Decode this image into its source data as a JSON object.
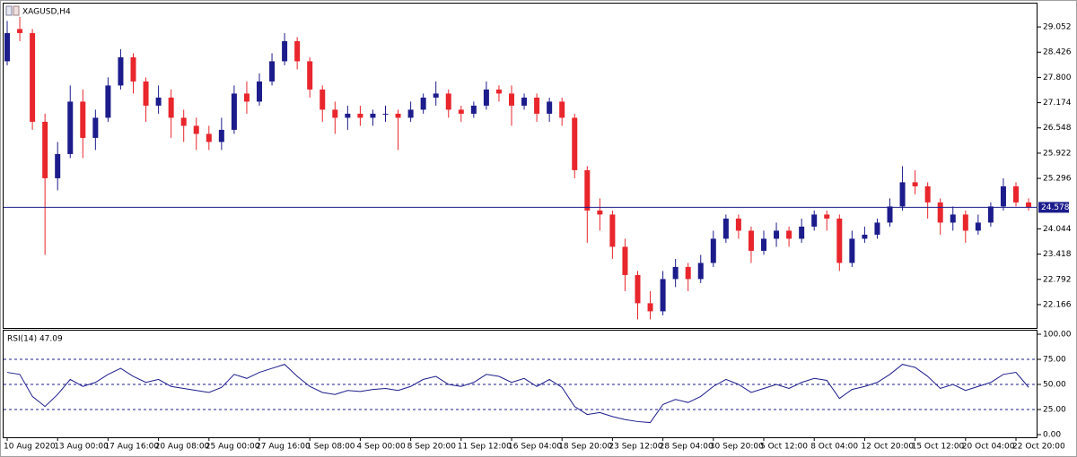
{
  "chart_data": [
    {
      "type": "candlestick",
      "title": "XAGUSD,H4",
      "categories": [
        "10 Aug 2020",
        null,
        null,
        null,
        "13 Aug 00:00",
        null,
        null,
        null,
        "17 Aug 16:00",
        null,
        null,
        null,
        "20 Aug 08:00",
        null,
        null,
        null,
        "25 Aug 00:00",
        null,
        null,
        null,
        "27 Aug 16:00",
        null,
        null,
        null,
        "1 Sep 08:00",
        null,
        null,
        null,
        "4 Sep 00:00",
        null,
        null,
        null,
        "8 Sep 20:00",
        null,
        null,
        null,
        "11 Sep 12:00",
        null,
        null,
        null,
        "16 Sep 04:00",
        null,
        null,
        null,
        "18 Sep 20:00",
        null,
        null,
        null,
        "23 Sep 12:00",
        null,
        null,
        null,
        "28 Sep 04:00",
        null,
        null,
        null,
        "30 Sep 20:00",
        null,
        null,
        null,
        "5 Oct 12:00",
        null,
        null,
        null,
        "8 Oct 04:00",
        null,
        null,
        null,
        "12 Oct 20:00",
        null,
        null,
        null,
        "15 Oct 12:00",
        null,
        null,
        null,
        "20 Oct 04:00",
        null,
        null,
        null,
        "22 Oct 20:00",
        null
      ],
      "open": [
        28.2,
        29.0,
        28.9,
        26.7,
        25.3,
        25.9,
        27.2,
        26.3,
        26.8,
        27.6,
        28.3,
        27.7,
        27.1,
        27.3,
        26.8,
        26.6,
        26.4,
        26.2,
        26.5,
        27.4,
        27.2,
        27.7,
        28.2,
        28.7,
        28.2,
        27.5,
        27.0,
        26.8,
        26.9,
        26.8,
        26.9,
        26.9,
        26.8,
        27.0,
        27.3,
        27.4,
        27.0,
        26.9,
        27.1,
        27.5,
        27.4,
        27.1,
        27.3,
        26.9,
        27.2,
        26.8,
        25.5,
        24.5,
        24.4,
        23.6,
        22.9,
        22.2,
        22.0,
        22.8,
        23.1,
        22.8,
        23.2,
        23.8,
        24.3,
        24.0,
        23.5,
        23.8,
        24.0,
        23.8,
        24.1,
        24.4,
        24.3,
        23.2,
        23.8,
        23.9,
        24.2,
        24.6,
        25.2,
        25.1,
        24.7,
        24.2,
        24.4,
        24.0,
        24.2,
        24.6,
        25.1,
        24.7
      ],
      "high": [
        29.2,
        29.3,
        29.0,
        26.9,
        26.2,
        27.6,
        27.5,
        27.0,
        27.8,
        28.5,
        28.4,
        27.8,
        27.6,
        27.5,
        27.0,
        26.8,
        26.6,
        26.8,
        27.6,
        27.7,
        27.9,
        28.4,
        28.9,
        28.8,
        28.3,
        27.6,
        27.2,
        27.1,
        27.1,
        27.0,
        27.1,
        27.0,
        27.2,
        27.4,
        27.7,
        27.5,
        27.1,
        27.2,
        27.7,
        27.6,
        27.6,
        27.4,
        27.4,
        27.3,
        27.3,
        26.9,
        25.6,
        24.8,
        24.5,
        23.8,
        23.0,
        22.5,
        23.0,
        23.3,
        23.2,
        23.4,
        24.0,
        24.4,
        24.4,
        24.1,
        24.0,
        24.2,
        24.1,
        24.3,
        24.5,
        24.5,
        24.4,
        24.0,
        24.1,
        24.3,
        24.8,
        25.6,
        25.5,
        25.2,
        24.8,
        24.6,
        24.5,
        24.4,
        24.7,
        25.3,
        25.2,
        24.8
      ],
      "low": [
        28.1,
        28.7,
        26.5,
        23.4,
        25.0,
        25.8,
        25.8,
        26.0,
        26.7,
        27.5,
        27.4,
        26.7,
        26.9,
        26.3,
        26.2,
        26.0,
        26.0,
        26.0,
        26.4,
        26.9,
        27.1,
        27.6,
        28.1,
        28.0,
        27.3,
        26.7,
        26.4,
        26.5,
        26.6,
        26.6,
        26.7,
        26.0,
        26.7,
        26.9,
        27.1,
        26.8,
        26.7,
        26.8,
        27.0,
        27.2,
        26.6,
        27.0,
        26.7,
        26.7,
        26.6,
        25.3,
        23.7,
        24.0,
        23.3,
        22.5,
        21.8,
        21.8,
        21.9,
        22.6,
        22.5,
        22.7,
        23.1,
        23.7,
        23.8,
        23.2,
        23.4,
        23.6,
        23.6,
        23.7,
        24.0,
        24.0,
        23.0,
        23.1,
        23.7,
        23.8,
        24.1,
        24.5,
        24.9,
        24.3,
        23.9,
        24.0,
        23.7,
        23.9,
        24.1,
        24.5,
        24.6,
        24.5
      ],
      "close": [
        28.9,
        28.9,
        26.7,
        25.3,
        25.9,
        27.2,
        26.3,
        26.8,
        27.6,
        28.3,
        27.7,
        27.1,
        27.3,
        26.8,
        26.6,
        26.4,
        26.2,
        26.5,
        27.4,
        27.2,
        27.7,
        28.2,
        28.7,
        28.2,
        27.5,
        27.0,
        26.8,
        26.9,
        26.8,
        26.9,
        26.9,
        26.8,
        27.0,
        27.3,
        27.4,
        27.0,
        26.9,
        27.1,
        27.5,
        27.4,
        27.1,
        27.3,
        26.9,
        27.2,
        26.8,
        25.5,
        24.5,
        24.4,
        23.6,
        22.9,
        22.2,
        22.0,
        22.8,
        23.1,
        22.8,
        23.2,
        23.8,
        24.3,
        24.0,
        23.5,
        23.8,
        24.0,
        23.8,
        24.1,
        24.4,
        24.3,
        23.2,
        23.8,
        23.9,
        24.2,
        24.6,
        25.2,
        25.1,
        24.7,
        24.2,
        24.4,
        24.0,
        24.2,
        24.6,
        25.1,
        24.7,
        24.578
      ],
      "up_color": "#1c1c8c",
      "down_color": "#e8262c",
      "ylim": [
        21.587,
        29.609
      ],
      "yticks": [
        29.052,
        28.426,
        {
          "value": 27.8,
          "label": "27.800"
        },
        27.174,
        26.548,
        25.922,
        25.296,
        24.044,
        23.418,
        22.792,
        22.166
      ],
      "current_price": 24.578,
      "current_price_color": "#1c1c8c"
    },
    {
      "type": "line",
      "title": "RSI(14) 47.09",
      "values": [
        62,
        60,
        38,
        28,
        40,
        55,
        48,
        52,
        60,
        66,
        58,
        52,
        55,
        48,
        46,
        44,
        42,
        47,
        60,
        56,
        62,
        66,
        70,
        58,
        48,
        42,
        40,
        44,
        43,
        45,
        46,
        44,
        48,
        55,
        58,
        50,
        48,
        52,
        60,
        58,
        52,
        56,
        48,
        55,
        47,
        28,
        20,
        22,
        18,
        15,
        13,
        12,
        30,
        35,
        32,
        38,
        48,
        55,
        50,
        42,
        46,
        50,
        46,
        52,
        56,
        54,
        36,
        45,
        48,
        52,
        60,
        70,
        67,
        58,
        46,
        50,
        44,
        48,
        52,
        60,
        62,
        47.09
      ],
      "color": "#1c1c8c",
      "ylim": [
        0,
        100
      ],
      "yticks": [
        {
          "value": 100,
          "label": "100.00"
        },
        {
          "value": 75,
          "label": "75.00"
        },
        {
          "value": 50,
          "label": "50.00"
        },
        {
          "value": 25,
          "label": "25.00"
        },
        {
          "value": 0,
          "label": "0.00"
        }
      ],
      "levels": [
        75,
        50,
        25
      ]
    }
  ]
}
